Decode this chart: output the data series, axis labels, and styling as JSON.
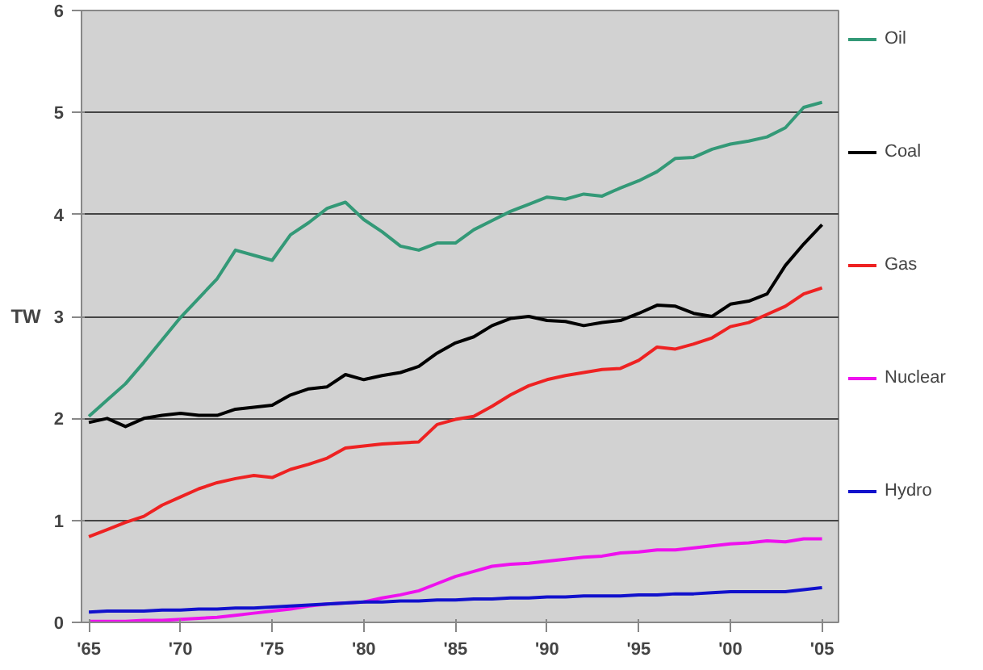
{
  "chart_data": {
    "type": "line",
    "ylabel": "TW",
    "x": [
      1965,
      1966,
      1967,
      1968,
      1969,
      1970,
      1971,
      1972,
      1973,
      1974,
      1975,
      1976,
      1977,
      1978,
      1979,
      1980,
      1981,
      1982,
      1983,
      1984,
      1985,
      1986,
      1987,
      1988,
      1989,
      1990,
      1991,
      1992,
      1993,
      1994,
      1995,
      1996,
      1997,
      1998,
      1999,
      2000,
      2001,
      2002,
      2003,
      2004,
      2005
    ],
    "xlim": [
      1964.6,
      2005.9
    ],
    "xticks": [
      {
        "value": 1965,
        "label": "'65"
      },
      {
        "value": 1970,
        "label": "'70"
      },
      {
        "value": 1975,
        "label": "'75"
      },
      {
        "value": 1980,
        "label": "'80"
      },
      {
        "value": 1985,
        "label": "'85"
      },
      {
        "value": 1990,
        "label": "'90"
      },
      {
        "value": 1995,
        "label": "'95"
      },
      {
        "value": 2000,
        "label": "'00"
      },
      {
        "value": 2005,
        "label": "'05"
      }
    ],
    "ylim": [
      0,
      6
    ],
    "yticks": [
      0,
      1,
      2,
      3,
      4,
      5,
      6
    ],
    "grid": "y",
    "legend": "right",
    "line_style": "solid",
    "series": [
      {
        "name": "Oil",
        "color": "#339977",
        "values": [
          2.02,
          2.18,
          2.34,
          2.55,
          2.77,
          2.99,
          3.18,
          3.37,
          3.65,
          3.6,
          3.55,
          3.8,
          3.92,
          4.06,
          4.12,
          3.95,
          3.83,
          3.69,
          3.65,
          3.72,
          3.72,
          3.85,
          3.94,
          4.03,
          4.1,
          4.17,
          4.15,
          4.2,
          4.18,
          4.26,
          4.33,
          4.42,
          4.55,
          4.56,
          4.64,
          4.69,
          4.72,
          4.76,
          4.85,
          5.05,
          5.1
        ]
      },
      {
        "name": "Coal",
        "color": "#000000",
        "values": [
          1.96,
          2.0,
          1.92,
          2.0,
          2.03,
          2.05,
          2.03,
          2.03,
          2.09,
          2.11,
          2.13,
          2.23,
          2.29,
          2.31,
          2.43,
          2.38,
          2.42,
          2.45,
          2.51,
          2.64,
          2.74,
          2.8,
          2.91,
          2.98,
          3.0,
          2.96,
          2.95,
          2.91,
          2.94,
          2.96,
          3.03,
          3.11,
          3.1,
          3.03,
          3.0,
          3.12,
          3.15,
          3.22,
          3.5,
          3.71,
          3.9
        ]
      },
      {
        "name": "Gas",
        "color": "#ee2222",
        "values": [
          0.84,
          0.91,
          0.98,
          1.04,
          1.15,
          1.23,
          1.31,
          1.37,
          1.41,
          1.44,
          1.42,
          1.5,
          1.55,
          1.61,
          1.71,
          1.73,
          1.75,
          1.76,
          1.77,
          1.94,
          1.99,
          2.02,
          2.12,
          2.23,
          2.32,
          2.38,
          2.42,
          2.45,
          2.48,
          2.49,
          2.57,
          2.7,
          2.68,
          2.73,
          2.79,
          2.9,
          2.94,
          3.02,
          3.1,
          3.22,
          3.28
        ]
      },
      {
        "name": "Nuclear",
        "color": "#ee11ee",
        "values": [
          0.01,
          0.01,
          0.01,
          0.02,
          0.02,
          0.03,
          0.04,
          0.05,
          0.07,
          0.09,
          0.11,
          0.13,
          0.16,
          0.18,
          0.19,
          0.2,
          0.24,
          0.27,
          0.31,
          0.38,
          0.45,
          0.5,
          0.55,
          0.57,
          0.58,
          0.6,
          0.62,
          0.64,
          0.65,
          0.68,
          0.69,
          0.71,
          0.71,
          0.73,
          0.75,
          0.77,
          0.78,
          0.8,
          0.79,
          0.82,
          0.82
        ]
      },
      {
        "name": "Hydro",
        "color": "#1111cc",
        "values": [
          0.1,
          0.11,
          0.11,
          0.11,
          0.12,
          0.12,
          0.13,
          0.13,
          0.14,
          0.14,
          0.15,
          0.16,
          0.17,
          0.18,
          0.19,
          0.2,
          0.2,
          0.21,
          0.21,
          0.22,
          0.22,
          0.23,
          0.23,
          0.24,
          0.24,
          0.25,
          0.25,
          0.26,
          0.26,
          0.26,
          0.27,
          0.27,
          0.28,
          0.28,
          0.29,
          0.3,
          0.3,
          0.3,
          0.3,
          0.32,
          0.34
        ]
      }
    ]
  }
}
